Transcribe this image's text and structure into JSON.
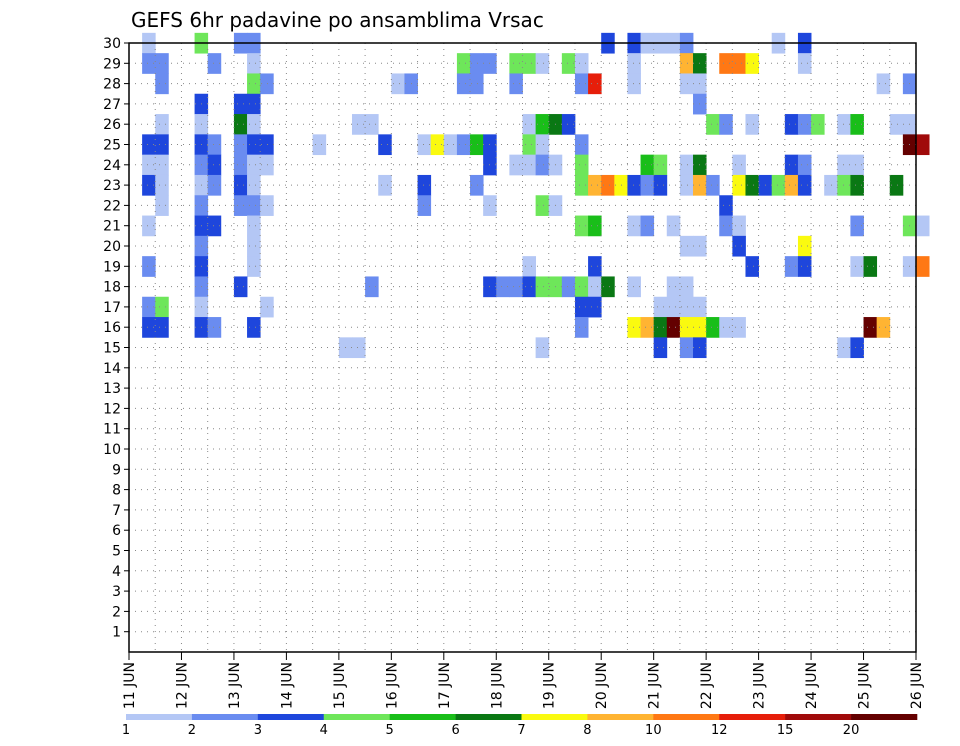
{
  "chart_data": {
    "type": "heatmap",
    "title": "GEFS 6hr padavine po ansamblima Vrsac",
    "xlabel": "",
    "ylabel": "",
    "x_ticks": [
      "11 JUN",
      "12 JUN",
      "13 JUN",
      "14 JUN",
      "15 JUN",
      "16 JUN",
      "17 JUN",
      "18 JUN",
      "19 JUN",
      "20 JUN",
      "21 JUN",
      "22 JUN",
      "23 JUN",
      "24 JUN",
      "25 JUN",
      "26 JUN"
    ],
    "y_ticks": [
      1,
      2,
      3,
      4,
      5,
      6,
      7,
      8,
      9,
      10,
      11,
      12,
      13,
      14,
      15,
      16,
      17,
      18,
      19,
      20,
      21,
      22,
      23,
      24,
      25,
      26,
      27,
      28,
      29,
      30
    ],
    "ylim": [
      0,
      30
    ],
    "x_range_days": [
      11,
      26
    ],
    "time_step_hours": 6,
    "grid": true,
    "legend_placement": "bottom",
    "colorbar": {
      "labels": [
        "1",
        "2",
        "3",
        "4",
        "5",
        "6",
        "7",
        "8",
        "10",
        "12",
        "15",
        "20"
      ],
      "colors": [
        "#b4c7f5",
        "#6a8cf0",
        "#1e46dc",
        "#6ee65a",
        "#19be19",
        "#0a7814",
        "#fafa0f",
        "#ffb432",
        "#ff7814",
        "#e61e0a",
        "#a00a0a",
        "#640000"
      ]
    },
    "cells": [
      {
        "m": 30,
        "d": "11 06",
        "c": 1
      },
      {
        "m": 30,
        "d": "12 06",
        "c": 4
      },
      {
        "m": 30,
        "d": "13 00",
        "c": 2
      },
      {
        "m": 30,
        "d": "13 06",
        "c": 2
      },
      {
        "m": 30,
        "d": "20 00",
        "c": 3
      },
      {
        "m": 30,
        "d": "20 12",
        "c": 3
      },
      {
        "m": 30,
        "d": "20 18",
        "c": 1
      },
      {
        "m": 30,
        "d": "21 00",
        "c": 1
      },
      {
        "m": 30,
        "d": "21 06",
        "c": 1
      },
      {
        "m": 30,
        "d": "21 12",
        "c": 2
      },
      {
        "m": 30,
        "d": "23 06",
        "c": 1
      },
      {
        "m": 30,
        "d": "23 18",
        "c": 3
      },
      {
        "m": 29,
        "d": "11 06",
        "c": 2
      },
      {
        "m": 29,
        "d": "11 12",
        "c": 2
      },
      {
        "m": 29,
        "d": "12 12",
        "c": 2
      },
      {
        "m": 29,
        "d": "13 06",
        "c": 1
      },
      {
        "m": 29,
        "d": "17 06",
        "c": 4
      },
      {
        "m": 29,
        "d": "17 12",
        "c": 2
      },
      {
        "m": 29,
        "d": "17 18",
        "c": 2
      },
      {
        "m": 29,
        "d": "18 06",
        "c": 4
      },
      {
        "m": 29,
        "d": "18 12",
        "c": 4
      },
      {
        "m": 29,
        "d": "18 18",
        "c": 1
      },
      {
        "m": 29,
        "d": "19 06",
        "c": 4
      },
      {
        "m": 29,
        "d": "19 12",
        "c": 1
      },
      {
        "m": 29,
        "d": "20 12",
        "c": 1
      },
      {
        "m": 29,
        "d": "21 12",
        "c": 8
      },
      {
        "m": 29,
        "d": "21 18",
        "c": 6
      },
      {
        "m": 29,
        "d": "22 06",
        "c": 9
      },
      {
        "m": 29,
        "d": "22 12",
        "c": 9
      },
      {
        "m": 29,
        "d": "22 18",
        "c": 7
      },
      {
        "m": 29,
        "d": "23 18",
        "c": 1
      },
      {
        "m": 28,
        "d": "11 12",
        "c": 2
      },
      {
        "m": 28,
        "d": "13 06",
        "c": 4
      },
      {
        "m": 28,
        "d": "13 12",
        "c": 2
      },
      {
        "m": 28,
        "d": "16 00",
        "c": 1
      },
      {
        "m": 28,
        "d": "16 06",
        "c": 2
      },
      {
        "m": 28,
        "d": "17 06",
        "c": 2
      },
      {
        "m": 28,
        "d": "17 12",
        "c": 2
      },
      {
        "m": 28,
        "d": "18 06",
        "c": 2
      },
      {
        "m": 28,
        "d": "19 12",
        "c": 2
      },
      {
        "m": 28,
        "d": "19 18",
        "c": 10
      },
      {
        "m": 28,
        "d": "20 12",
        "c": 1
      },
      {
        "m": 28,
        "d": "21 12",
        "c": 1
      },
      {
        "m": 28,
        "d": "21 18",
        "c": 1
      },
      {
        "m": 28,
        "d": "25 06",
        "c": 1
      },
      {
        "m": 28,
        "d": "25 18",
        "c": 2
      },
      {
        "m": 27,
        "d": "12 06",
        "c": 3
      },
      {
        "m": 27,
        "d": "13 00",
        "c": 3
      },
      {
        "m": 27,
        "d": "13 06",
        "c": 3
      },
      {
        "m": 27,
        "d": "21 18",
        "c": 2
      },
      {
        "m": 26,
        "d": "11 12",
        "c": 1
      },
      {
        "m": 26,
        "d": "12 06",
        "c": 1
      },
      {
        "m": 26,
        "d": "13 00",
        "c": 6
      },
      {
        "m": 26,
        "d": "13 06",
        "c": 1
      },
      {
        "m": 26,
        "d": "15 06",
        "c": 1
      },
      {
        "m": 26,
        "d": "15 12",
        "c": 1
      },
      {
        "m": 26,
        "d": "18 12",
        "c": 1
      },
      {
        "m": 26,
        "d": "18 18",
        "c": 5
      },
      {
        "m": 26,
        "d": "19 00",
        "c": 6
      },
      {
        "m": 26,
        "d": "19 06",
        "c": 3
      },
      {
        "m": 26,
        "d": "22 00",
        "c": 4
      },
      {
        "m": 26,
        "d": "22 06",
        "c": 2
      },
      {
        "m": 26,
        "d": "22 18",
        "c": 1
      },
      {
        "m": 26,
        "d": "23 12",
        "c": 3
      },
      {
        "m": 26,
        "d": "23 18",
        "c": 2
      },
      {
        "m": 26,
        "d": "24 00",
        "c": 4
      },
      {
        "m": 26,
        "d": "24 12",
        "c": 1
      },
      {
        "m": 26,
        "d": "24 18",
        "c": 5
      },
      {
        "m": 26,
        "d": "25 12",
        "c": 1
      },
      {
        "m": 26,
        "d": "25 18",
        "c": 1
      },
      {
        "m": 25,
        "d": "11 06",
        "c": 3
      },
      {
        "m": 25,
        "d": "11 12",
        "c": 3
      },
      {
        "m": 25,
        "d": "12 06",
        "c": 3
      },
      {
        "m": 25,
        "d": "12 12",
        "c": 2
      },
      {
        "m": 25,
        "d": "13 00",
        "c": 2
      },
      {
        "m": 25,
        "d": "13 06",
        "c": 3
      },
      {
        "m": 25,
        "d": "13 12",
        "c": 3
      },
      {
        "m": 25,
        "d": "14 12",
        "c": 1
      },
      {
        "m": 25,
        "d": "15 18",
        "c": 3
      },
      {
        "m": 25,
        "d": "16 12",
        "c": 1
      },
      {
        "m": 25,
        "d": "16 18",
        "c": 7
      },
      {
        "m": 25,
        "d": "17 00",
        "c": 1
      },
      {
        "m": 25,
        "d": "17 06",
        "c": 2
      },
      {
        "m": 25,
        "d": "17 12",
        "c": 5
      },
      {
        "m": 25,
        "d": "17 18",
        "c": 3
      },
      {
        "m": 25,
        "d": "18 12",
        "c": 4
      },
      {
        "m": 25,
        "d": "18 18",
        "c": 1
      },
      {
        "m": 25,
        "d": "19 12",
        "c": 2
      },
      {
        "m": 25,
        "d": "25 18",
        "c": 12
      },
      {
        "m": 25,
        "d": "26 00",
        "c": 11
      },
      {
        "m": 24,
        "d": "11 06",
        "c": 1
      },
      {
        "m": 24,
        "d": "11 12",
        "c": 1
      },
      {
        "m": 24,
        "d": "12 06",
        "c": 2
      },
      {
        "m": 24,
        "d": "12 12",
        "c": 3
      },
      {
        "m": 24,
        "d": "13 00",
        "c": 2
      },
      {
        "m": 24,
        "d": "13 06",
        "c": 1
      },
      {
        "m": 24,
        "d": "13 12",
        "c": 1
      },
      {
        "m": 24,
        "d": "17 18",
        "c": 3
      },
      {
        "m": 24,
        "d": "18 06",
        "c": 1
      },
      {
        "m": 24,
        "d": "18 12",
        "c": 1
      },
      {
        "m": 24,
        "d": "18 18",
        "c": 2
      },
      {
        "m": 24,
        "d": "19 00",
        "c": 1
      },
      {
        "m": 24,
        "d": "19 12",
        "c": 4
      },
      {
        "m": 24,
        "d": "20 18",
        "c": 5
      },
      {
        "m": 24,
        "d": "21 00",
        "c": 4
      },
      {
        "m": 24,
        "d": "21 12",
        "c": 1
      },
      {
        "m": 24,
        "d": "21 18",
        "c": 6
      },
      {
        "m": 24,
        "d": "22 12",
        "c": 1
      },
      {
        "m": 24,
        "d": "23 12",
        "c": 3
      },
      {
        "m": 24,
        "d": "23 18",
        "c": 2
      },
      {
        "m": 24,
        "d": "24 12",
        "c": 1
      },
      {
        "m": 24,
        "d": "24 18",
        "c": 1
      },
      {
        "m": 23,
        "d": "11 06",
        "c": 3
      },
      {
        "m": 23,
        "d": "11 12",
        "c": 1
      },
      {
        "m": 23,
        "d": "12 06",
        "c": 1
      },
      {
        "m": 23,
        "d": "12 12",
        "c": 2
      },
      {
        "m": 23,
        "d": "13 00",
        "c": 3
      },
      {
        "m": 23,
        "d": "13 06",
        "c": 1
      },
      {
        "m": 23,
        "d": "15 18",
        "c": 1
      },
      {
        "m": 23,
        "d": "16 12",
        "c": 3
      },
      {
        "m": 23,
        "d": "17 12",
        "c": 2
      },
      {
        "m": 23,
        "d": "19 12",
        "c": 4
      },
      {
        "m": 23,
        "d": "19 18",
        "c": 8
      },
      {
        "m": 23,
        "d": "20 00",
        "c": 9
      },
      {
        "m": 23,
        "d": "20 06",
        "c": 7
      },
      {
        "m": 23,
        "d": "20 12",
        "c": 3
      },
      {
        "m": 23,
        "d": "20 18",
        "c": 2
      },
      {
        "m": 23,
        "d": "21 00",
        "c": 3
      },
      {
        "m": 23,
        "d": "21 12",
        "c": 1
      },
      {
        "m": 23,
        "d": "21 18",
        "c": 8
      },
      {
        "m": 23,
        "d": "22 00",
        "c": 2
      },
      {
        "m": 23,
        "d": "22 12",
        "c": 7
      },
      {
        "m": 23,
        "d": "22 18",
        "c": 6
      },
      {
        "m": 23,
        "d": "23 00",
        "c": 3
      },
      {
        "m": 23,
        "d": "23 06",
        "c": 4
      },
      {
        "m": 23,
        "d": "23 12",
        "c": 8
      },
      {
        "m": 23,
        "d": "23 18",
        "c": 3
      },
      {
        "m": 23,
        "d": "24 06",
        "c": 1
      },
      {
        "m": 23,
        "d": "24 12",
        "c": 4
      },
      {
        "m": 23,
        "d": "24 18",
        "c": 6
      },
      {
        "m": 23,
        "d": "25 12",
        "c": 6
      },
      {
        "m": 22,
        "d": "11 12",
        "c": 1
      },
      {
        "m": 22,
        "d": "12 06",
        "c": 2
      },
      {
        "m": 22,
        "d": "13 00",
        "c": 2
      },
      {
        "m": 22,
        "d": "13 06",
        "c": 2
      },
      {
        "m": 22,
        "d": "13 12",
        "c": 1
      },
      {
        "m": 22,
        "d": "16 12",
        "c": 2
      },
      {
        "m": 22,
        "d": "17 18",
        "c": 1
      },
      {
        "m": 22,
        "d": "18 18",
        "c": 4
      },
      {
        "m": 22,
        "d": "19 00",
        "c": 1
      },
      {
        "m": 22,
        "d": "22 06",
        "c": 3
      },
      {
        "m": 21,
        "d": "11 06",
        "c": 1
      },
      {
        "m": 21,
        "d": "12 06",
        "c": 3
      },
      {
        "m": 21,
        "d": "12 12",
        "c": 3
      },
      {
        "m": 21,
        "d": "13 06",
        "c": 1
      },
      {
        "m": 21,
        "d": "19 12",
        "c": 4
      },
      {
        "m": 21,
        "d": "19 18",
        "c": 5
      },
      {
        "m": 21,
        "d": "20 12",
        "c": 1
      },
      {
        "m": 21,
        "d": "20 18",
        "c": 2
      },
      {
        "m": 21,
        "d": "21 06",
        "c": 1
      },
      {
        "m": 21,
        "d": "22 06",
        "c": 2
      },
      {
        "m": 21,
        "d": "22 12",
        "c": 1
      },
      {
        "m": 21,
        "d": "24 18",
        "c": 2
      },
      {
        "m": 21,
        "d": "25 18",
        "c": 4
      },
      {
        "m": 21,
        "d": "26 00",
        "c": 1
      },
      {
        "m": 20,
        "d": "12 06",
        "c": 2
      },
      {
        "m": 20,
        "d": "13 06",
        "c": 1
      },
      {
        "m": 20,
        "d": "21 12",
        "c": 1
      },
      {
        "m": 20,
        "d": "21 18",
        "c": 1
      },
      {
        "m": 20,
        "d": "22 12",
        "c": 3
      },
      {
        "m": 20,
        "d": "23 18",
        "c": 7
      },
      {
        "m": 19,
        "d": "11 06",
        "c": 2
      },
      {
        "m": 19,
        "d": "12 06",
        "c": 3
      },
      {
        "m": 19,
        "d": "13 06",
        "c": 1
      },
      {
        "m": 19,
        "d": "18 12",
        "c": 1
      },
      {
        "m": 19,
        "d": "19 18",
        "c": 3
      },
      {
        "m": 19,
        "d": "22 18",
        "c": 3
      },
      {
        "m": 19,
        "d": "23 12",
        "c": 2
      },
      {
        "m": 19,
        "d": "23 18",
        "c": 3
      },
      {
        "m": 19,
        "d": "24 18",
        "c": 1
      },
      {
        "m": 19,
        "d": "25 00",
        "c": 6
      },
      {
        "m": 19,
        "d": "25 18",
        "c": 1
      },
      {
        "m": 19,
        "d": "26 00",
        "c": 9
      },
      {
        "m": 18,
        "d": "12 06",
        "c": 2
      },
      {
        "m": 18,
        "d": "13 00",
        "c": 3
      },
      {
        "m": 18,
        "d": "15 12",
        "c": 2
      },
      {
        "m": 18,
        "d": "17 18",
        "c": 3
      },
      {
        "m": 18,
        "d": "18 00",
        "c": 2
      },
      {
        "m": 18,
        "d": "18 06",
        "c": 2
      },
      {
        "m": 18,
        "d": "18 12",
        "c": 3
      },
      {
        "m": 18,
        "d": "18 18",
        "c": 4
      },
      {
        "m": 18,
        "d": "19 00",
        "c": 4
      },
      {
        "m": 18,
        "d": "19 06",
        "c": 2
      },
      {
        "m": 18,
        "d": "19 12",
        "c": 4
      },
      {
        "m": 18,
        "d": "19 18",
        "c": 1
      },
      {
        "m": 18,
        "d": "20 00",
        "c": 6
      },
      {
        "m": 18,
        "d": "20 12",
        "c": 1
      },
      {
        "m": 18,
        "d": "21 06",
        "c": 1
      },
      {
        "m": 18,
        "d": "21 12",
        "c": 1
      },
      {
        "m": 17,
        "d": "11 06",
        "c": 2
      },
      {
        "m": 17,
        "d": "11 12",
        "c": 4
      },
      {
        "m": 17,
        "d": "12 06",
        "c": 1
      },
      {
        "m": 17,
        "d": "13 12",
        "c": 1
      },
      {
        "m": 17,
        "d": "19 12",
        "c": 3
      },
      {
        "m": 17,
        "d": "19 18",
        "c": 3
      },
      {
        "m": 17,
        "d": "21 00",
        "c": 1
      },
      {
        "m": 17,
        "d": "21 06",
        "c": 1
      },
      {
        "m": 17,
        "d": "21 12",
        "c": 1
      },
      {
        "m": 17,
        "d": "21 18",
        "c": 1
      },
      {
        "m": 16,
        "d": "11 06",
        "c": 3
      },
      {
        "m": 16,
        "d": "11 12",
        "c": 3
      },
      {
        "m": 16,
        "d": "12 06",
        "c": 3
      },
      {
        "m": 16,
        "d": "12 12",
        "c": 2
      },
      {
        "m": 16,
        "d": "13 06",
        "c": 3
      },
      {
        "m": 16,
        "d": "19 12",
        "c": 2
      },
      {
        "m": 16,
        "d": "20 12",
        "c": 7
      },
      {
        "m": 16,
        "d": "20 18",
        "c": 8
      },
      {
        "m": 16,
        "d": "21 00",
        "c": 6
      },
      {
        "m": 16,
        "d": "21 06",
        "c": 12
      },
      {
        "m": 16,
        "d": "21 12",
        "c": 7
      },
      {
        "m": 16,
        "d": "21 18",
        "c": 7
      },
      {
        "m": 16,
        "d": "22 00",
        "c": 5
      },
      {
        "m": 16,
        "d": "22 06",
        "c": 1
      },
      {
        "m": 16,
        "d": "22 12",
        "c": 1
      },
      {
        "m": 16,
        "d": "25 00",
        "c": 12
      },
      {
        "m": 16,
        "d": "25 06",
        "c": 8
      },
      {
        "m": 15,
        "d": "15 00",
        "c": 1
      },
      {
        "m": 15,
        "d": "15 06",
        "c": 1
      },
      {
        "m": 15,
        "d": "18 18",
        "c": 1
      },
      {
        "m": 15,
        "d": "21 00",
        "c": 3
      },
      {
        "m": 15,
        "d": "21 12",
        "c": 2
      },
      {
        "m": 15,
        "d": "21 18",
        "c": 3
      },
      {
        "m": 15,
        "d": "24 12",
        "c": 1
      },
      {
        "m": 15,
        "d": "24 18",
        "c": 3
      }
    ]
  }
}
